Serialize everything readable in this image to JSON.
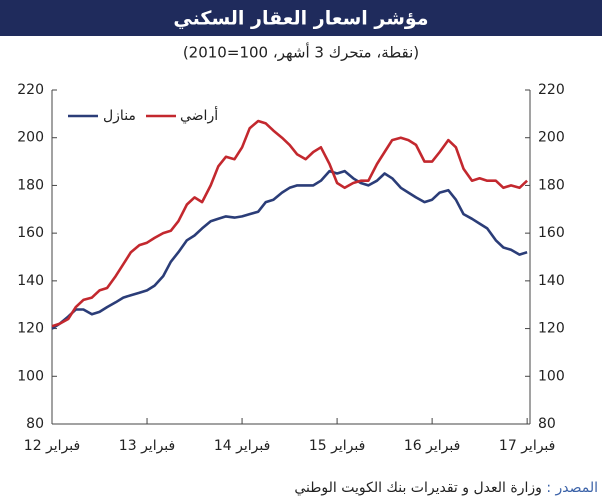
{
  "chart_data": {
    "type": "line",
    "title": "مؤشر اسعار العقار السكني",
    "subtitle": "(نقطة، متحرك 3 أشهر، 100=2010)",
    "source_label": "المصدر :",
    "source": "وزارة العدل و تقديرات بنك الكويت الوطني",
    "x": [
      12,
      12.08,
      12.17,
      12.25,
      12.33,
      12.42,
      12.5,
      12.58,
      12.67,
      12.75,
      12.83,
      12.92,
      13,
      13.08,
      13.17,
      13.25,
      13.33,
      13.42,
      13.5,
      13.58,
      13.67,
      13.75,
      13.83,
      13.92,
      14,
      14.08,
      14.17,
      14.25,
      14.33,
      14.42,
      14.5,
      14.58,
      14.67,
      14.75,
      14.83,
      14.92,
      15,
      15.08,
      15.17,
      15.25,
      15.33,
      15.42,
      15.5,
      15.58,
      15.67,
      15.75,
      15.83,
      15.92,
      16,
      16.08,
      16.17,
      16.25,
      16.33,
      16.42,
      16.5,
      16.58,
      16.67,
      16.75,
      16.83,
      16.92,
      17
    ],
    "series": [
      {
        "name": "منازل",
        "color": "#2b3d78",
        "values": [
          120,
          122,
          125,
          128,
          128,
          126,
          127,
          129,
          131,
          133,
          134,
          135,
          136,
          138,
          142,
          148,
          152,
          157,
          159,
          162,
          165,
          166,
          167,
          166.5,
          167,
          168,
          169,
          173,
          174,
          177,
          179,
          180,
          180,
          180,
          182,
          186,
          185,
          186,
          183,
          181,
          180,
          182,
          185,
          183,
          179,
          177,
          175,
          173,
          174,
          177,
          178,
          174,
          168,
          166,
          164,
          162,
          157,
          154,
          153,
          151,
          152
        ]
      },
      {
        "name": "أراضي",
        "color": "#c3282e",
        "values": [
          121,
          122,
          124,
          129,
          132,
          133,
          136,
          137,
          142,
          147,
          152,
          155,
          156,
          158,
          160,
          161,
          165,
          172,
          175,
          173,
          180,
          188,
          192,
          191,
          196,
          204,
          207,
          206,
          203,
          200,
          197,
          193,
          191,
          194,
          196,
          189,
          181,
          179,
          181,
          182,
          182,
          189,
          194,
          199,
          200,
          199,
          197,
          190,
          190,
          194,
          199,
          196,
          187,
          182,
          183,
          182,
          182,
          179,
          180,
          179,
          182
        ]
      }
    ],
    "xlim": [
      12,
      17.03
    ],
    "xticks": [
      {
        "value": 12,
        "label": "فبراير 12"
      },
      {
        "value": 13,
        "label": "فبراير 13"
      },
      {
        "value": 14,
        "label": "فبراير 14"
      },
      {
        "value": 15,
        "label": "فبراير 15"
      },
      {
        "value": 16,
        "label": "فبراير 16"
      },
      {
        "value": 17,
        "label": "فبراير 17"
      }
    ],
    "ylim": [
      80,
      220
    ],
    "yticks": [
      80,
      100,
      120,
      140,
      160,
      180,
      200,
      220
    ],
    "y2lim": [
      80,
      220
    ],
    "y2ticks": [
      80,
      100,
      120,
      140,
      160,
      180,
      200,
      220
    ],
    "grid": false
  }
}
